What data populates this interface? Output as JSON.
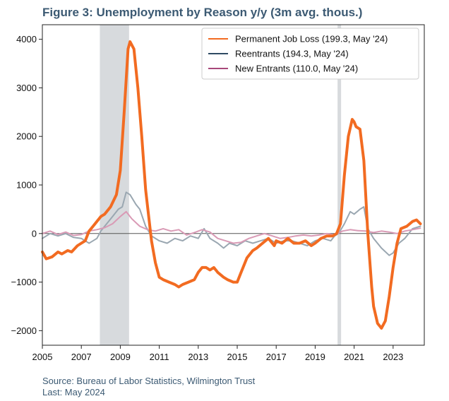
{
  "chart_data": {
    "type": "line",
    "title": "Figure 3: Unemployment by Reason y/y (3m avg. thous.)",
    "xlabel": "",
    "ylabel": "",
    "xlim": [
      2005.0,
      2024.6
    ],
    "ylim": [
      -2300,
      4300
    ],
    "x_ticks": [
      2005,
      2007,
      2009,
      2011,
      2013,
      2015,
      2017,
      2019,
      2021,
      2023
    ],
    "y_ticks": [
      -2000,
      -1000,
      0,
      1000,
      2000,
      3000,
      4000
    ],
    "grid": false,
    "legend_position": "top-right",
    "recessions": [
      [
        2007.95,
        2009.45
      ],
      [
        2020.15,
        2020.33
      ]
    ],
    "colors": {
      "permanent": "#f26b21",
      "reentrants": "#9aa7b1",
      "reentrants_legend": "#2e4a63",
      "new_entrants": "#d99ab5",
      "new_entrants_legend": "#a8487a",
      "recession": "#d7dadd",
      "zero_line": "#555555"
    },
    "series": [
      {
        "name": "Permanent Job Loss (199.3, May '24)",
        "key": "permanent",
        "x": [
          2005.0,
          2005.2,
          2005.5,
          2005.8,
          2006.0,
          2006.3,
          2006.5,
          2006.8,
          2007.0,
          2007.2,
          2007.4,
          2007.6,
          2007.8,
          2008.0,
          2008.2,
          2008.5,
          2008.8,
          2009.0,
          2009.2,
          2009.4,
          2009.5,
          2009.7,
          2009.9,
          2010.1,
          2010.3,
          2010.6,
          2010.8,
          2011.0,
          2011.2,
          2011.5,
          2011.8,
          2012.0,
          2012.2,
          2012.5,
          2012.8,
          2013.0,
          2013.2,
          2013.4,
          2013.6,
          2013.8,
          2014.0,
          2014.3,
          2014.5,
          2014.8,
          2015.0,
          2015.2,
          2015.5,
          2015.8,
          2016.0,
          2016.3,
          2016.6,
          2016.9,
          2017.0,
          2017.3,
          2017.6,
          2017.9,
          2018.2,
          2018.5,
          2018.8,
          2019.0,
          2019.3,
          2019.6,
          2019.9,
          2020.1,
          2020.3,
          2020.5,
          2020.7,
          2020.9,
          2021.0,
          2021.1,
          2021.3,
          2021.5,
          2021.7,
          2021.9,
          2022.0,
          2022.2,
          2022.4,
          2022.6,
          2022.8,
          2023.0,
          2023.2,
          2023.4,
          2023.7,
          2024.0,
          2024.2,
          2024.4
        ],
        "values": [
          -380,
          -520,
          -480,
          -380,
          -420,
          -350,
          -380,
          -250,
          -200,
          -150,
          50,
          150,
          250,
          350,
          400,
          550,
          800,
          1300,
          2500,
          3800,
          3950,
          3800,
          3000,
          2000,
          900,
          -150,
          -600,
          -900,
          -950,
          -1000,
          -1050,
          -1100,
          -1050,
          -1000,
          -950,
          -800,
          -700,
          -700,
          -750,
          -700,
          -800,
          -900,
          -950,
          -1000,
          -1000,
          -800,
          -500,
          -350,
          -300,
          -200,
          -100,
          -250,
          -150,
          -200,
          -100,
          -200,
          -200,
          -150,
          -250,
          -200,
          -100,
          -50,
          -50,
          0,
          200,
          1200,
          2000,
          2350,
          2300,
          2200,
          2150,
          1500,
          0,
          -1100,
          -1500,
          -1850,
          -1950,
          -1800,
          -1300,
          -700,
          -200,
          100,
          150,
          250,
          280,
          200
        ]
      },
      {
        "name": "Reentrants (194.3, May '24)",
        "key": "reentrants",
        "x": [
          2005.0,
          2005.4,
          2005.8,
          2006.2,
          2006.6,
          2007.0,
          2007.4,
          2007.8,
          2008.0,
          2008.3,
          2008.6,
          2008.9,
          2009.1,
          2009.3,
          2009.5,
          2009.8,
          2010.0,
          2010.3,
          2010.6,
          2011.0,
          2011.4,
          2011.8,
          2012.2,
          2012.6,
          2013.0,
          2013.3,
          2013.6,
          2014.0,
          2014.3,
          2014.6,
          2015.0,
          2015.4,
          2015.8,
          2016.2,
          2016.6,
          2017.0,
          2017.4,
          2017.8,
          2018.2,
          2018.6,
          2019.0,
          2019.4,
          2019.8,
          2020.0,
          2020.2,
          2020.5,
          2020.8,
          2021.0,
          2021.3,
          2021.5,
          2021.7,
          2022.0,
          2022.4,
          2022.8,
          2023.0,
          2023.3,
          2023.6,
          2024.0,
          2024.4
        ],
        "values": [
          -100,
          0,
          -50,
          0,
          -80,
          -100,
          -200,
          -100,
          50,
          200,
          350,
          500,
          550,
          850,
          800,
          600,
          500,
          150,
          -50,
          -150,
          -200,
          -100,
          -150,
          -50,
          -100,
          100,
          -100,
          -200,
          -300,
          -200,
          -250,
          -150,
          -200,
          -150,
          -100,
          -200,
          -150,
          -150,
          -200,
          -250,
          -150,
          -100,
          -150,
          -50,
          0,
          200,
          450,
          400,
          500,
          550,
          100,
          -100,
          -300,
          -450,
          -400,
          -200,
          -100,
          100,
          150
        ]
      },
      {
        "name": "New Entrants (110.0, May '24)",
        "key": "new_entrants",
        "x": [
          2005.0,
          2005.4,
          2005.8,
          2006.2,
          2006.6,
          2007.0,
          2007.4,
          2007.8,
          2008.2,
          2008.6,
          2009.0,
          2009.3,
          2009.6,
          2010.0,
          2010.4,
          2010.8,
          2011.2,
          2011.6,
          2012.0,
          2012.4,
          2012.8,
          2013.2,
          2013.6,
          2014.0,
          2014.4,
          2014.8,
          2015.2,
          2015.6,
          2016.0,
          2016.4,
          2016.8,
          2017.2,
          2017.6,
          2018.0,
          2018.4,
          2018.8,
          2019.2,
          2019.6,
          2020.0,
          2020.4,
          2020.8,
          2021.2,
          2021.6,
          2022.0,
          2022.4,
          2022.8,
          2023.2,
          2023.6,
          2024.0,
          2024.4
        ],
        "values": [
          0,
          50,
          -20,
          30,
          -40,
          -20,
          50,
          80,
          120,
          200,
          350,
          450,
          300,
          150,
          80,
          50,
          100,
          50,
          80,
          -30,
          20,
          80,
          30,
          -100,
          -150,
          -200,
          -180,
          -100,
          -50,
          0,
          -50,
          -100,
          -80,
          -50,
          -30,
          -50,
          -30,
          0,
          -30,
          50,
          80,
          60,
          50,
          20,
          50,
          30,
          0,
          50,
          80,
          110
        ]
      }
    ]
  },
  "source_line": "Source: Bureau of Labor Statistics, Wilmington Trust",
  "last_line": "Last: May 2024"
}
